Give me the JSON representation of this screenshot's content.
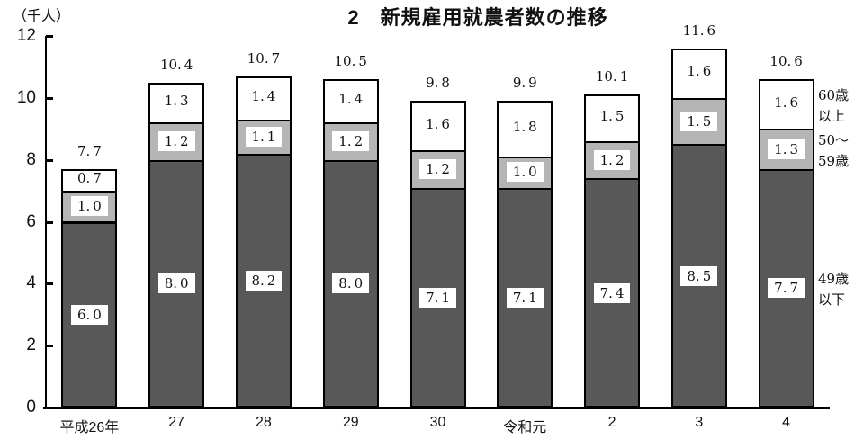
{
  "chart_data": {
    "type": "bar",
    "stacked": true,
    "title": "2　新規雇用就農者数の推移",
    "unit_label": "（千人）",
    "categories": [
      "平成26年",
      "27",
      "28",
      "29",
      "30",
      "令和元",
      "2",
      "3",
      "4"
    ],
    "series": [
      {
        "name": "49歳以下",
        "key": "under-49",
        "legend_lines": "49歳\n以下",
        "color": "#585858",
        "text_boxed": true,
        "values": [
          6.0,
          8.0,
          8.2,
          8.0,
          7.1,
          7.1,
          7.4,
          8.5,
          7.7
        ]
      },
      {
        "name": "50～59歳",
        "key": "50-59",
        "legend_lines": "50～\n59歳",
        "color": "#b5b5b5",
        "text_boxed": true,
        "values": [
          1.0,
          1.2,
          1.1,
          1.2,
          1.2,
          1.0,
          1.2,
          1.5,
          1.3
        ]
      },
      {
        "name": "60歳以上",
        "key": "60-over",
        "legend_lines": "60歳\n以上",
        "color": "#ffffff",
        "text_boxed": false,
        "values": [
          0.7,
          1.3,
          1.4,
          1.4,
          1.6,
          1.8,
          1.5,
          1.6,
          1.6
        ]
      }
    ],
    "totals": [
      7.7,
      10.4,
      10.7,
      10.5,
      9.8,
      9.9,
      10.1,
      11.6,
      10.6
    ],
    "ylim": [
      0,
      12
    ],
    "ytick_interval": 2,
    "ytick_labels": [
      "0",
      "2",
      "4",
      "6",
      "8",
      "10",
      "12"
    ],
    "grid": false,
    "legend_position": "right-of-last-bar",
    "colors": {
      "axis": "#000000",
      "text": "#111111",
      "label_box_bg": "#ffffff"
    }
  }
}
